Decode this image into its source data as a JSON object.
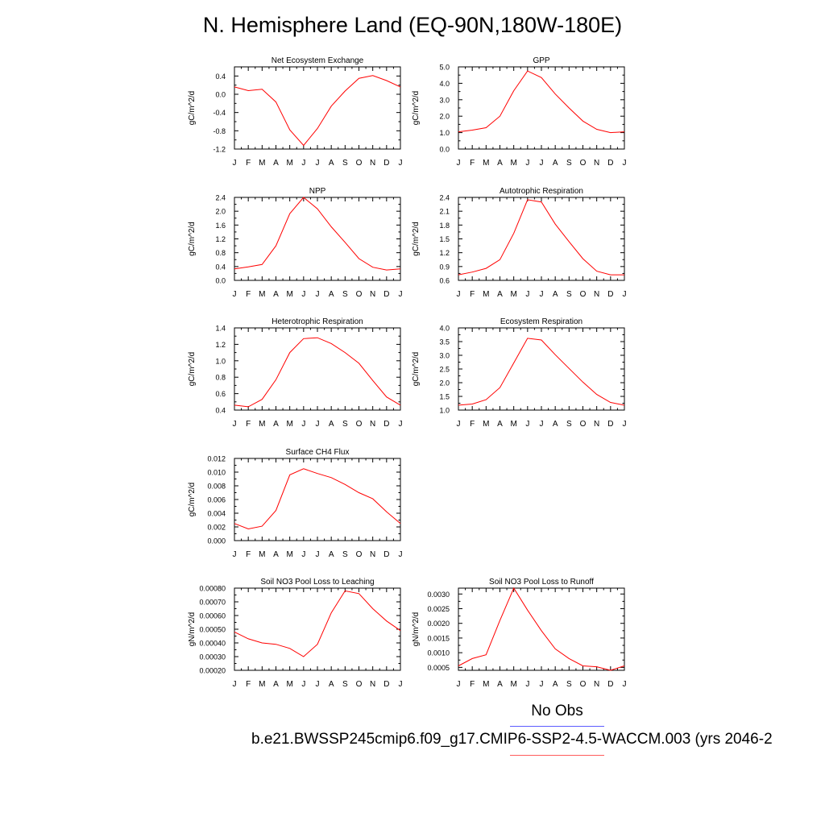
{
  "page": {
    "title": "N. Hemisphere Land (EQ-90N,180W-180E)",
    "legend": {
      "obs_label": "No Obs",
      "case_label": "b.e21.BWSSP245cmip6.f09_g17.CMIP6-SSP2-4.5-WACCM.003 (yrs 2046-2"
    },
    "colors": {
      "model_line": "#ff0000",
      "obs_line": "#5c5cff",
      "case_line": "#ff5c5c",
      "axis": "#000000"
    }
  },
  "chart_data": [
    {
      "type": "line",
      "title": "Net Ecosystem Exchange",
      "ylabel": "gC/m^2/d",
      "categories": [
        "J",
        "F",
        "M",
        "A",
        "M",
        "J",
        "J",
        "A",
        "S",
        "O",
        "N",
        "D",
        "J"
      ],
      "ylim": [
        -1.2,
        0.6
      ],
      "yticks": [
        -1.2,
        -0.8,
        -0.4,
        0.0,
        0.4
      ],
      "ytick_labels": [
        "-1.2",
        "-0.8",
        "-0.4",
        "0.0",
        "0.4"
      ],
      "series": [
        {
          "values": [
            0.16,
            0.08,
            0.11,
            -0.17,
            -0.78,
            -1.12,
            -0.75,
            -0.26,
            0.07,
            0.35,
            0.41,
            0.3,
            0.16
          ]
        }
      ]
    },
    {
      "type": "line",
      "title": "GPP",
      "ylabel": "gC/m^2/d",
      "categories": [
        "J",
        "F",
        "M",
        "A",
        "M",
        "J",
        "J",
        "A",
        "S",
        "O",
        "N",
        "D",
        "J"
      ],
      "ylim": [
        0.0,
        5.0
      ],
      "yticks": [
        0.0,
        1.0,
        2.0,
        3.0,
        4.0,
        5.0
      ],
      "ytick_labels": [
        "0.0",
        "1.0",
        "2.0",
        "3.0",
        "4.0",
        "5.0"
      ],
      "series": [
        {
          "values": [
            1.05,
            1.15,
            1.3,
            2.0,
            3.55,
            4.75,
            4.35,
            3.35,
            2.5,
            1.7,
            1.2,
            1.0,
            1.05
          ]
        }
      ]
    },
    {
      "type": "line",
      "title": "NPP",
      "ylabel": "gC/m^2/d",
      "categories": [
        "J",
        "F",
        "M",
        "A",
        "M",
        "J",
        "J",
        "A",
        "S",
        "O",
        "N",
        "D",
        "J"
      ],
      "ylim": [
        0.0,
        2.4
      ],
      "yticks": [
        0.0,
        0.4,
        0.8,
        1.2,
        1.6,
        2.0,
        2.4
      ],
      "ytick_labels": [
        "0.0",
        "0.4",
        "0.8",
        "1.2",
        "1.6",
        "2.0",
        "2.4"
      ],
      "series": [
        {
          "values": [
            0.33,
            0.39,
            0.46,
            1.0,
            1.93,
            2.4,
            2.07,
            1.55,
            1.1,
            0.63,
            0.38,
            0.3,
            0.33
          ]
        }
      ]
    },
    {
      "type": "line",
      "title": "Autotrophic Respiration",
      "ylabel": "gC/m^2/d",
      "categories": [
        "J",
        "F",
        "M",
        "A",
        "M",
        "J",
        "J",
        "A",
        "S",
        "O",
        "N",
        "D",
        "J"
      ],
      "ylim": [
        0.6,
        2.4
      ],
      "yticks": [
        0.6,
        0.9,
        1.2,
        1.5,
        1.8,
        2.1,
        2.4
      ],
      "ytick_labels": [
        "0.6",
        "0.9",
        "1.2",
        "1.5",
        "1.8",
        "2.1",
        "2.4"
      ],
      "series": [
        {
          "values": [
            0.72,
            0.78,
            0.86,
            1.05,
            1.62,
            2.35,
            2.3,
            1.82,
            1.44,
            1.07,
            0.8,
            0.72,
            0.72
          ]
        }
      ]
    },
    {
      "type": "line",
      "title": "Heterotrophic Respiration",
      "ylabel": "gC/m^2/d",
      "categories": [
        "J",
        "F",
        "M",
        "A",
        "M",
        "J",
        "J",
        "A",
        "S",
        "O",
        "N",
        "D",
        "J"
      ],
      "ylim": [
        0.4,
        1.4
      ],
      "yticks": [
        0.4,
        0.6,
        0.8,
        1.0,
        1.2,
        1.4
      ],
      "ytick_labels": [
        "0.4",
        "0.6",
        "0.8",
        "1.0",
        "1.2",
        "1.4"
      ],
      "series": [
        {
          "values": [
            0.46,
            0.44,
            0.53,
            0.77,
            1.1,
            1.27,
            1.28,
            1.21,
            1.1,
            0.97,
            0.76,
            0.56,
            0.46
          ]
        }
      ]
    },
    {
      "type": "line",
      "title": "Ecosystem Respiration",
      "ylabel": "gC/m^2/d",
      "categories": [
        "J",
        "F",
        "M",
        "A",
        "M",
        "J",
        "J",
        "A",
        "S",
        "O",
        "N",
        "D",
        "J"
      ],
      "ylim": [
        1.0,
        4.0
      ],
      "yticks": [
        1.0,
        1.5,
        2.0,
        2.5,
        3.0,
        3.5,
        4.0
      ],
      "ytick_labels": [
        "1.0",
        "1.5",
        "2.0",
        "2.5",
        "3.0",
        "3.5",
        "4.0"
      ],
      "series": [
        {
          "values": [
            1.18,
            1.22,
            1.38,
            1.82,
            2.72,
            3.62,
            3.56,
            3.02,
            2.52,
            2.02,
            1.57,
            1.28,
            1.18
          ]
        }
      ]
    },
    {
      "type": "line",
      "title": "Surface CH4 Flux",
      "ylabel": "gC/m^2/d",
      "categories": [
        "J",
        "F",
        "M",
        "A",
        "M",
        "J",
        "J",
        "A",
        "S",
        "O",
        "N",
        "D",
        "J"
      ],
      "ylim": [
        0.0,
        0.012
      ],
      "yticks": [
        0.0,
        0.002,
        0.004,
        0.006,
        0.008,
        0.01,
        0.012
      ],
      "ytick_labels": [
        "0.000",
        "0.002",
        "0.004",
        "0.006",
        "0.008",
        "0.010",
        "0.012"
      ],
      "series": [
        {
          "values": [
            0.0025,
            0.0017,
            0.0021,
            0.0044,
            0.0096,
            0.0105,
            0.0098,
            0.0092,
            0.0082,
            0.007,
            0.0061,
            0.0042,
            0.0025
          ]
        }
      ]
    },
    {
      "type": "line",
      "title": "Soil NO3 Pool Loss to Leaching",
      "ylabel": "gN/m^2/d",
      "categories": [
        "J",
        "F",
        "M",
        "A",
        "M",
        "J",
        "J",
        "A",
        "S",
        "O",
        "N",
        "D",
        "J"
      ],
      "ylim": [
        0.0002,
        0.0008
      ],
      "yticks": [
        0.0002,
        0.0003,
        0.0004,
        0.0005,
        0.0006,
        0.0007,
        0.0008
      ],
      "ytick_labels": [
        "0.00020",
        "0.00030",
        "0.00040",
        "0.00050",
        "0.00060",
        "0.00070",
        "0.00080"
      ],
      "series": [
        {
          "values": [
            0.00048,
            0.00043,
            0.0004,
            0.00039,
            0.00036,
            0.0003,
            0.00039,
            0.00062,
            0.00078,
            0.00076,
            0.00065,
            0.00056,
            0.00049
          ]
        }
      ]
    },
    {
      "type": "line",
      "title": "Soil NO3 Pool Loss to Runoff",
      "ylabel": "gN/m^2/d",
      "categories": [
        "J",
        "F",
        "M",
        "A",
        "M",
        "J",
        "J",
        "A",
        "S",
        "O",
        "N",
        "D",
        "J"
      ],
      "ylim": [
        0.0004,
        0.0032
      ],
      "yticks": [
        0.0005,
        0.001,
        0.0015,
        0.002,
        0.0025,
        0.003
      ],
      "ytick_labels": [
        "0.0005",
        "0.0010",
        "0.0015",
        "0.0020",
        "0.0025",
        "0.0030"
      ],
      "series": [
        {
          "values": [
            0.00055,
            0.0008,
            0.00093,
            0.0021,
            0.0032,
            0.00245,
            0.00175,
            0.00113,
            0.0008,
            0.00055,
            0.00052,
            0.0004,
            0.00055
          ]
        }
      ]
    }
  ]
}
